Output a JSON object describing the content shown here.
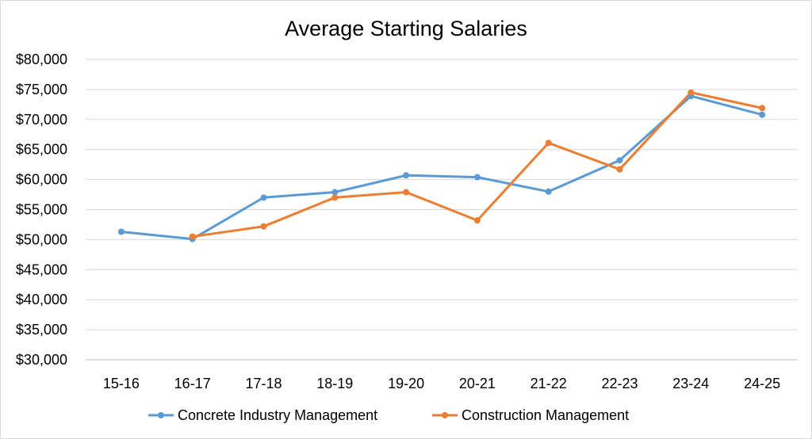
{
  "chart_data": {
    "type": "line",
    "title": "Average Starting Salaries",
    "xlabel": "",
    "ylabel": "",
    "categories": [
      "15-16",
      "16-17",
      "17-18",
      "18-19",
      "19-20",
      "20-21",
      "21-22",
      "22-23",
      "23-24",
      "24-25"
    ],
    "ylim": [
      30000,
      80000
    ],
    "yticks": [
      30000,
      35000,
      40000,
      45000,
      50000,
      55000,
      60000,
      65000,
      70000,
      75000,
      80000
    ],
    "ytick_labels": [
      "$30,000",
      "$35,000",
      "$40,000",
      "$45,000",
      "$50,000",
      "$55,000",
      "$60,000",
      "$65,000",
      "$70,000",
      "$75,000",
      "$80,000"
    ],
    "grid": true,
    "legend_position": "bottom",
    "series": [
      {
        "name": "Concrete Industry Management",
        "color": "#5b9bd5",
        "values": [
          51300,
          50100,
          57000,
          57900,
          60700,
          60400,
          58000,
          63200,
          73900,
          70800
        ]
      },
      {
        "name": "Construction Management",
        "color": "#ed7d31",
        "values": [
          null,
          50500,
          52200,
          57000,
          57900,
          53200,
          66100,
          61700,
          74500,
          71900
        ]
      }
    ]
  }
}
